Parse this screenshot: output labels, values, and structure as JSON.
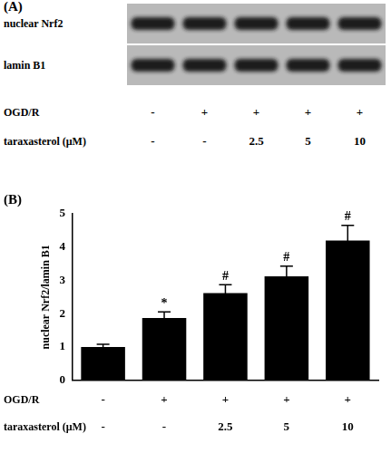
{
  "panel_a": {
    "label": "(A)",
    "bands": [
      "nuclear Nrf2",
      "lamin B1"
    ],
    "conditions": [
      {
        "name": "OGD/R",
        "values": [
          "-",
          "+",
          "+",
          "+",
          "+"
        ]
      },
      {
        "name": "taraxasterol (μM)",
        "values": [
          "-",
          "-",
          "2.5",
          "5",
          "10"
        ]
      }
    ]
  },
  "chart_data": {
    "type": "bar",
    "panel_label": "(B)",
    "y_label": "nuclear Nrf2/lamin B1",
    "categories": [
      null,
      null,
      null,
      null,
      null
    ],
    "values": [
      1.0,
      1.87,
      2.62,
      3.12,
      4.2
    ],
    "errors": [
      0.08,
      0.18,
      0.25,
      0.31,
      0.45
    ],
    "annotations": [
      null,
      "*",
      "#",
      "#",
      "#"
    ],
    "color": "#000000",
    "ylim": [
      0,
      5
    ],
    "yticks": [
      0,
      1,
      2,
      3,
      4,
      5
    ],
    "grid": false,
    "conditions": [
      {
        "name": "OGD/R",
        "values": [
          "-",
          "+",
          "+",
          "+",
          "+"
        ]
      },
      {
        "name": "taraxasterol (μM)",
        "values": [
          "-",
          "-",
          "2.5",
          "5",
          "10"
        ]
      }
    ]
  }
}
